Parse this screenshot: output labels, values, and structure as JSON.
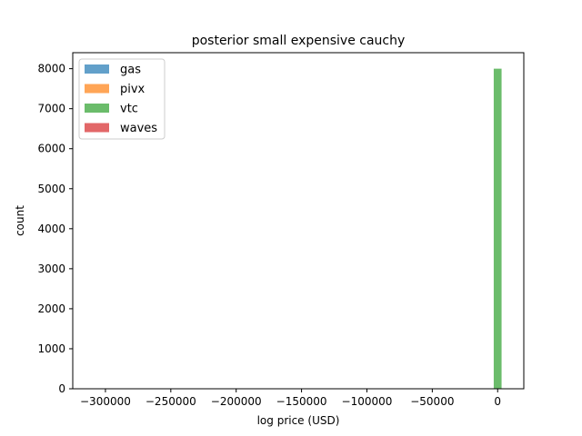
{
  "chart_data": {
    "type": "bar",
    "title": "posterior small expensive cauchy",
    "xlabel": "log price (USD)",
    "ylabel": "count",
    "xlim": [
      -325000,
      20000
    ],
    "ylim": [
      0,
      8400
    ],
    "xticks": [
      {
        "value": -300000,
        "label": "−300000"
      },
      {
        "value": -250000,
        "label": "−250000"
      },
      {
        "value": -200000,
        "label": "−200000"
      },
      {
        "value": -150000,
        "label": "−150000"
      },
      {
        "value": -100000,
        "label": "−100000"
      },
      {
        "value": -50000,
        "label": "−50000"
      },
      {
        "value": 0,
        "label": "0"
      }
    ],
    "yticks": [
      {
        "value": 0,
        "label": "0"
      },
      {
        "value": 1000,
        "label": "1000"
      },
      {
        "value": 2000,
        "label": "2000"
      },
      {
        "value": 3000,
        "label": "3000"
      },
      {
        "value": 4000,
        "label": "4000"
      },
      {
        "value": 5000,
        "label": "5000"
      },
      {
        "value": 6000,
        "label": "6000"
      },
      {
        "value": 7000,
        "label": "7000"
      },
      {
        "value": 8000,
        "label": "8000"
      }
    ],
    "legend_position": "top-left",
    "grid": false,
    "series": [
      {
        "name": "gas",
        "color": "#1f77b4",
        "bins": []
      },
      {
        "name": "pivx",
        "color": "#ff7f0e",
        "bins": []
      },
      {
        "name": "vtc",
        "color": "#2ca02c",
        "bins": [
          {
            "x0": -3000,
            "x1": 3000,
            "count": 8000
          }
        ]
      },
      {
        "name": "waves",
        "color": "#d62728",
        "bins": []
      }
    ]
  }
}
